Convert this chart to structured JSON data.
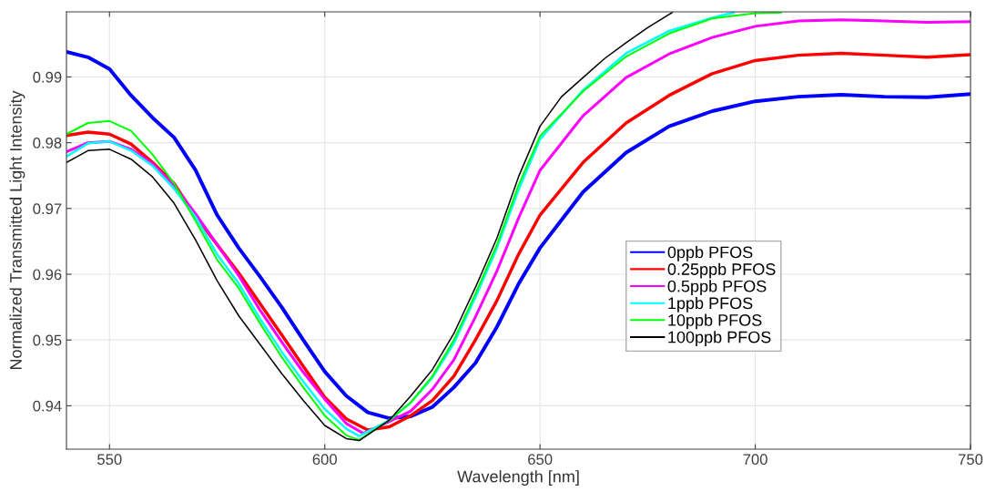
{
  "chart_data": {
    "type": "line",
    "xlabel": "Wavelength [nm]",
    "ylabel": "Normalized Transmitted Light Intensity",
    "xlim": [
      540,
      750
    ],
    "xticks": [
      550,
      600,
      650,
      700,
      750
    ],
    "ylim": [
      0.9334,
      0.9999
    ],
    "yticks": [
      0.94,
      0.95,
      0.96,
      0.97,
      0.98,
      0.99
    ],
    "grid": true,
    "legend": "right",
    "marker": "none",
    "line_style": "solid",
    "series": [
      {
        "name": "0ppb PFOS",
        "color": "#0000ff",
        "x": [
          540,
          545,
          550,
          555,
          560,
          565,
          570,
          575,
          580,
          585,
          590,
          595,
          600,
          605,
          610,
          615,
          620,
          625,
          630,
          635,
          640,
          645,
          650,
          660,
          670,
          680,
          690,
          700,
          710,
          720,
          730,
          740,
          750
        ],
        "values": [
          0.9938,
          0.993,
          0.9912,
          0.9872,
          0.9838,
          0.9808,
          0.9758,
          0.969,
          0.964,
          0.9596,
          0.955,
          0.95,
          0.9452,
          0.9415,
          0.939,
          0.9381,
          0.9384,
          0.9398,
          0.9428,
          0.9465,
          0.952,
          0.9585,
          0.964,
          0.9725,
          0.9785,
          0.9825,
          0.9848,
          0.9863,
          0.987,
          0.9873,
          0.987,
          0.9869,
          0.9874
        ]
      },
      {
        "name": "0.25ppb PFOS",
        "color": "#ff0000",
        "x": [
          540,
          545,
          550,
          555,
          560,
          565,
          570,
          575,
          580,
          585,
          590,
          595,
          600,
          605,
          610,
          615,
          620,
          625,
          630,
          635,
          640,
          645,
          650,
          660,
          670,
          680,
          690,
          700,
          710,
          720,
          730,
          740,
          750
        ],
        "values": [
          0.9811,
          0.9816,
          0.9813,
          0.9798,
          0.977,
          0.9738,
          0.9688,
          0.9645,
          0.9602,
          0.9555,
          0.9508,
          0.946,
          0.9413,
          0.938,
          0.9363,
          0.9368,
          0.9385,
          0.9408,
          0.9445,
          0.95,
          0.956,
          0.963,
          0.969,
          0.977,
          0.983,
          0.9872,
          0.9905,
          0.9925,
          0.9933,
          0.9936,
          0.9933,
          0.993,
          0.9934
        ]
      },
      {
        "name": "0.5ppb PFOS",
        "color": "#ff00ff",
        "x": [
          540,
          545,
          550,
          555,
          560,
          565,
          570,
          575,
          580,
          585,
          590,
          595,
          600,
          605,
          609,
          615,
          620,
          625,
          630,
          635,
          640,
          645,
          650,
          660,
          670,
          680,
          690,
          700,
          710,
          720,
          730,
          740,
          750
        ],
        "values": [
          0.9786,
          0.98,
          0.9802,
          0.979,
          0.9768,
          0.9735,
          0.9692,
          0.9645,
          0.9598,
          0.9545,
          0.9497,
          0.9451,
          0.941,
          0.9373,
          0.9358,
          0.9376,
          0.9392,
          0.9425,
          0.947,
          0.9535,
          0.9605,
          0.9685,
          0.9758,
          0.9841,
          0.9899,
          0.9935,
          0.996,
          0.9977,
          0.9985,
          0.9987,
          0.9985,
          0.9983,
          0.9984
        ]
      },
      {
        "name": "1ppb PFOS",
        "color": "#00ffff",
        "x": [
          540,
          545,
          550,
          555,
          560,
          565,
          570,
          575,
          580,
          585,
          590,
          595,
          600,
          605,
          608,
          615,
          620,
          625,
          630,
          635,
          640,
          645,
          650,
          660,
          670,
          680,
          690,
          695
        ],
        "values": [
          0.9779,
          0.9799,
          0.9802,
          0.9788,
          0.9765,
          0.973,
          0.9687,
          0.963,
          0.9586,
          0.9532,
          0.9482,
          0.9437,
          0.9395,
          0.9365,
          0.9354,
          0.9378,
          0.9405,
          0.9443,
          0.9495,
          0.9565,
          0.964,
          0.9728,
          0.9805,
          0.988,
          0.9936,
          0.997,
          0.999,
          0.9998
        ]
      },
      {
        "name": "10ppb PFOS",
        "color": "#00ff00",
        "x": [
          540,
          545,
          550,
          555,
          560,
          565,
          570,
          575,
          580,
          585,
          590,
          595,
          600,
          605,
          608,
          615,
          620,
          625,
          630,
          635,
          640,
          645,
          650,
          660,
          670,
          680,
          690,
          700,
          706
        ],
        "values": [
          0.9813,
          0.983,
          0.9833,
          0.9818,
          0.9782,
          0.9738,
          0.9681,
          0.9622,
          0.9579,
          0.9525,
          0.9474,
          0.9428,
          0.9385,
          0.9355,
          0.9348,
          0.9378,
          0.9405,
          0.9445,
          0.95,
          0.957,
          0.9645,
          0.9735,
          0.981,
          0.9878,
          0.9931,
          0.9966,
          0.9989,
          0.9997,
          0.9998
        ]
      },
      {
        "name": "100ppb PFOS",
        "color": "#000000",
        "x": [
          540,
          545,
          550,
          555,
          560,
          565,
          570,
          575,
          580,
          585,
          590,
          595,
          600,
          605,
          608,
          615,
          620,
          625,
          630,
          635,
          640,
          645,
          650,
          655,
          660,
          665,
          670,
          675,
          680.7
        ],
        "values": [
          0.977,
          0.9788,
          0.979,
          0.9775,
          0.9748,
          0.9708,
          0.9652,
          0.959,
          0.9537,
          0.9493,
          0.9449,
          0.9408,
          0.937,
          0.935,
          0.9347,
          0.9378,
          0.9415,
          0.9455,
          0.951,
          0.958,
          0.9655,
          0.9748,
          0.9825,
          0.987,
          0.9899,
          0.9928,
          0.9952,
          0.9975,
          0.9998
        ]
      }
    ]
  }
}
